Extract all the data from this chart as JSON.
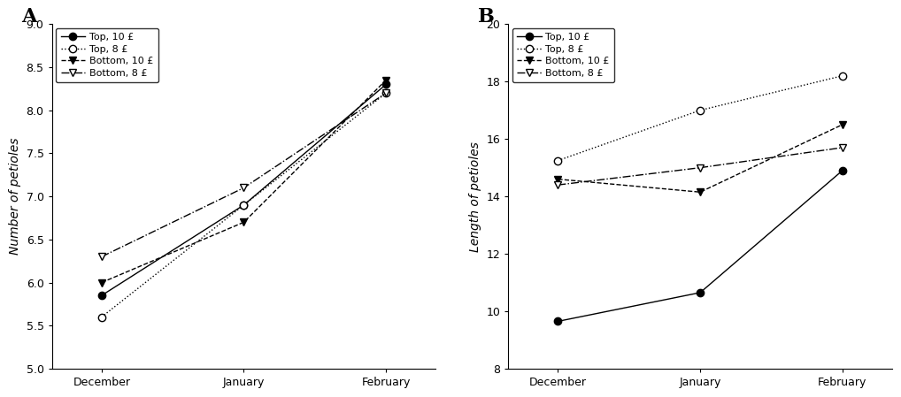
{
  "x_labels": [
    "December",
    "January",
    "February"
  ],
  "x_positions": [
    0,
    1,
    2
  ],
  "panel_A": {
    "title": "A",
    "ylabel": "Number of petioles",
    "ylim": [
      5.0,
      9.0
    ],
    "yticks": [
      5.0,
      5.5,
      6.0,
      6.5,
      7.0,
      7.5,
      8.0,
      8.5,
      9.0
    ],
    "ytick_labels": [
      "5.0",
      "5.5",
      "6.0",
      "6.5",
      "7.0",
      "7.5",
      "8.0",
      "8.5",
      "9.0"
    ],
    "series": [
      {
        "label": "Top, 10",
        "suffix": " £",
        "values": [
          5.85,
          6.9,
          8.3
        ],
        "marker": "o",
        "markerfacecolor": "black",
        "markeredgecolor": "black",
        "linestyle": "-",
        "color": "black",
        "markersize": 6
      },
      {
        "label": "Top, 8",
        "suffix": " £",
        "values": [
          5.6,
          6.9,
          8.2
        ],
        "marker": "o",
        "markerfacecolor": "white",
        "markeredgecolor": "black",
        "linestyle": ":",
        "color": "black",
        "markersize": 6
      },
      {
        "label": "Bottom, 10",
        "suffix": " £",
        "values": [
          6.0,
          6.7,
          8.35
        ],
        "marker": "v",
        "markerfacecolor": "black",
        "markeredgecolor": "black",
        "linestyle": "--",
        "color": "black",
        "markersize": 6
      },
      {
        "label": "Bottom, 8",
        "suffix": " £",
        "values": [
          6.3,
          7.1,
          8.2
        ],
        "marker": "v",
        "markerfacecolor": "white",
        "markeredgecolor": "black",
        "linestyle": "-.",
        "color": "black",
        "markersize": 6
      }
    ]
  },
  "panel_B": {
    "title": "B",
    "ylabel": "Length of petioles",
    "ylim": [
      8,
      20
    ],
    "yticks": [
      8,
      10,
      12,
      14,
      16,
      18,
      20
    ],
    "ytick_labels": [
      "8",
      "10",
      "12",
      "14",
      "16",
      "18",
      "20"
    ],
    "series": [
      {
        "label": "Top, 10",
        "suffix": " £",
        "values": [
          9.65,
          10.65,
          14.9
        ],
        "marker": "o",
        "markerfacecolor": "black",
        "markeredgecolor": "black",
        "linestyle": "-",
        "color": "black",
        "markersize": 6
      },
      {
        "label": "Top, 8",
        "suffix": " £",
        "values": [
          15.25,
          17.0,
          18.2
        ],
        "marker": "o",
        "markerfacecolor": "white",
        "markeredgecolor": "black",
        "linestyle": ":",
        "color": "black",
        "markersize": 6
      },
      {
        "label": "Bottom, 10",
        "suffix": " £",
        "values": [
          14.6,
          14.15,
          16.5
        ],
        "marker": "v",
        "markerfacecolor": "black",
        "markeredgecolor": "black",
        "linestyle": "--",
        "color": "black",
        "markersize": 6
      },
      {
        "label": "Bottom, 8",
        "suffix": " £",
        "values": [
          14.4,
          15.0,
          15.7
        ],
        "marker": "v",
        "markerfacecolor": "white",
        "markeredgecolor": "black",
        "linestyle": "-.",
        "color": "black",
        "markersize": 6
      }
    ]
  }
}
